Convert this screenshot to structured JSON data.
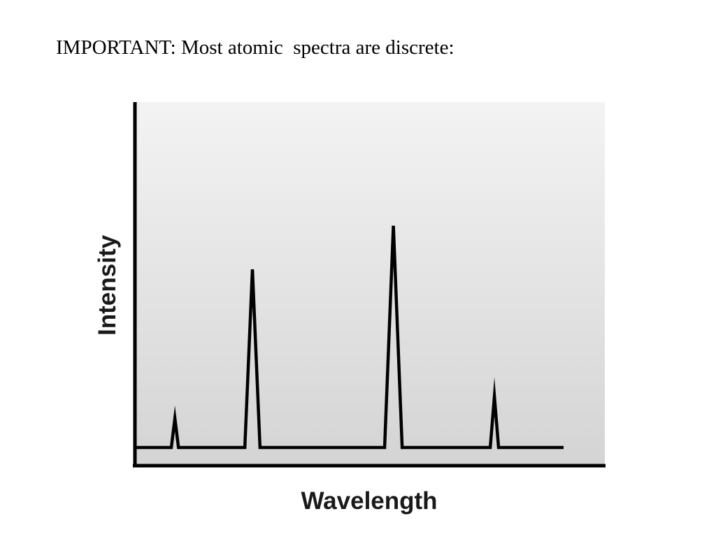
{
  "slide": {
    "title": "IMPORTANT: Most atomic  spectra are discrete:"
  },
  "chart_data": {
    "type": "line",
    "title": "",
    "xlabel": "Wavelength",
    "ylabel": "Intensity",
    "x_ticks": false,
    "y_ticks": false,
    "grid": false,
    "background": "light-gray gradient",
    "line_color": "#000000",
    "baseline": 0.05,
    "ylim": [
      0,
      1
    ],
    "x_range": [
      0,
      1
    ],
    "peaks": [
      {
        "x": 0.085,
        "intensity": 0.13
      },
      {
        "x": 0.25,
        "intensity": 0.54
      },
      {
        "x": 0.55,
        "intensity": 0.66
      },
      {
        "x": 0.765,
        "intensity": 0.19
      }
    ]
  }
}
